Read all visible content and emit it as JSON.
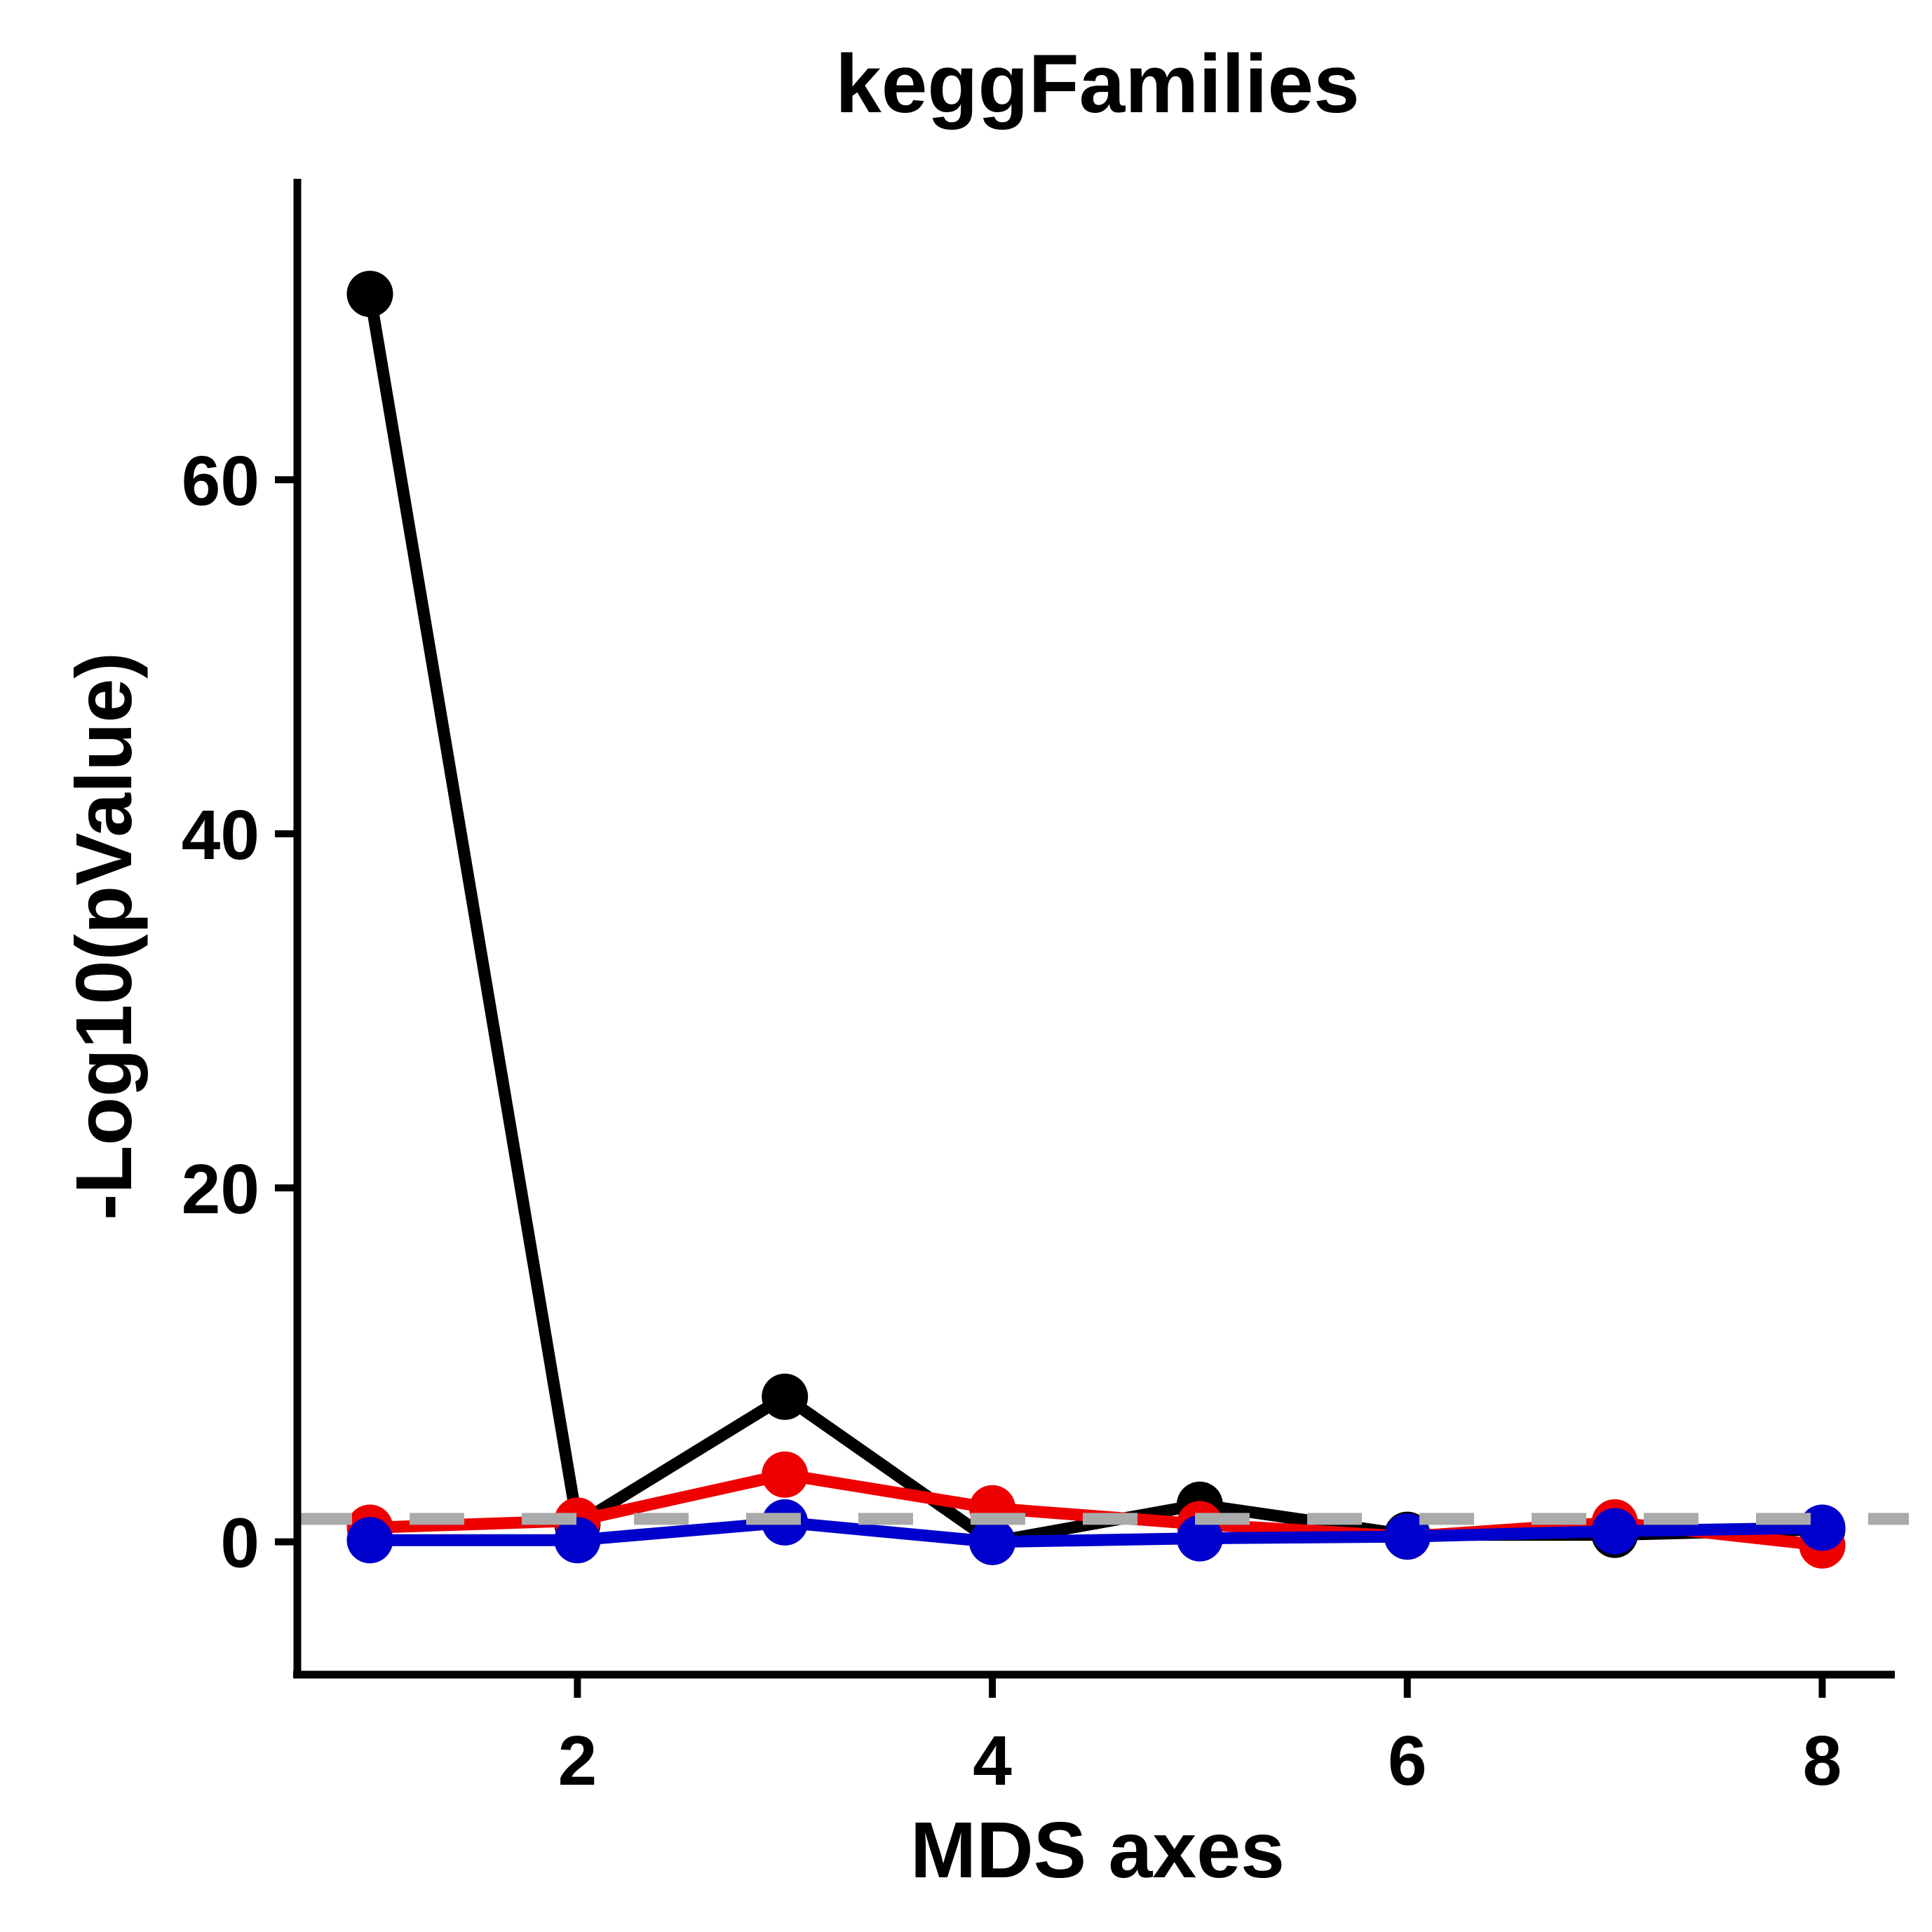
{
  "chart_data": {
    "type": "line",
    "title": "keggFamilies",
    "xlabel": "MDS axes",
    "ylabel": "-Log10(pValue)",
    "x": [
      1,
      2,
      3,
      4,
      5,
      6,
      7,
      8
    ],
    "xticks": [
      2,
      4,
      6,
      8
    ],
    "yticks": [
      0,
      20,
      40,
      60
    ],
    "xlim": [
      0.65,
      8.35
    ],
    "ylim": [
      -7.5,
      77
    ],
    "grid": false,
    "legend": "none",
    "threshold": {
      "y": 1.3,
      "color": "#AAAAAA",
      "style": "dashed"
    },
    "series": [
      {
        "color": "#000000",
        "values": [
          70.5,
          1.0,
          8.2,
          0.0,
          2.1,
          0.4,
          0.4,
          0.7
        ]
      },
      {
        "color": "#EE0000",
        "values": [
          0.8,
          1.2,
          3.8,
          1.9,
          1.0,
          0.3,
          1.1,
          -0.2
        ]
      },
      {
        "color": "#0000CC",
        "values": [
          0.1,
          0.1,
          1.1,
          0.0,
          0.2,
          0.3,
          0.6,
          0.8
        ]
      }
    ]
  }
}
